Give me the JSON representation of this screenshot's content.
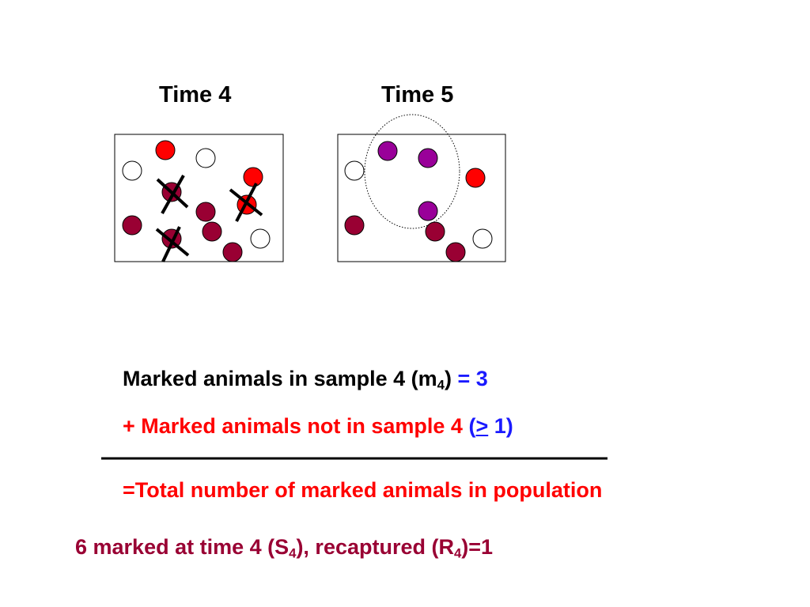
{
  "slide": {
    "panel_left_title": "Time 4",
    "panel_right_title": "Time 5",
    "line1": {
      "prefix": "Marked animals in sample 4 (m",
      "sub": "4",
      "suffix": ")",
      "result": "= 3"
    },
    "line2": {
      "plus": "+ ",
      "text": "Marked animals not in sample 4",
      "paren_open": "(",
      "ge": ">",
      "value": " 1)"
    },
    "line3": "=Total number of marked animals in population",
    "line4": {
      "a": "6 marked at time 4 (S",
      "sub_s": "4",
      "b": "), recaptured (R",
      "sub_r": "4",
      "c": ")=1"
    }
  },
  "colors": {
    "red": "#ff0000",
    "maroon": "#990033",
    "purple": "#990099",
    "white": "#ffffff",
    "cross": "#000000",
    "text_blue": "#1a1aff",
    "text_red": "#ff0000",
    "text_maroon": "#990033"
  }
}
